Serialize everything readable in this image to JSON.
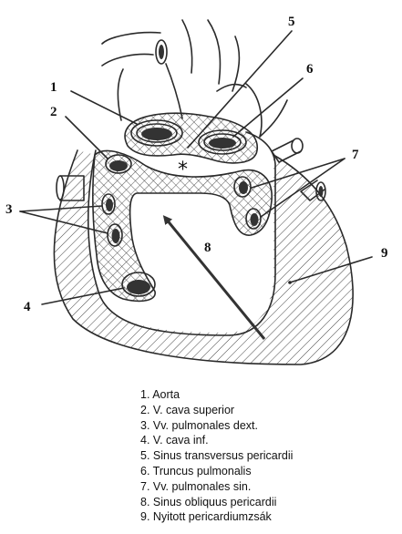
{
  "diagram": {
    "markers": [
      {
        "id": "1",
        "label": "1"
      },
      {
        "id": "2",
        "label": "2"
      },
      {
        "id": "3",
        "label": "3"
      },
      {
        "id": "4",
        "label": "4"
      },
      {
        "id": "5",
        "label": "5"
      },
      {
        "id": "6",
        "label": "6"
      },
      {
        "id": "7",
        "label": "7"
      },
      {
        "id": "8",
        "label": "8"
      },
      {
        "id": "9",
        "label": "9"
      }
    ],
    "symbol": "*"
  },
  "legend": [
    "1. Aorta",
    "2. V. cava superior",
    "3. Vv. pulmonales dext.",
    "4. V. cava inf.",
    "5. Sinus transversus pericardii",
    "6. Truncus pulmonalis",
    "7. Vv. pulmonales sin.",
    "8. Sinus obliquus pericardii",
    "9. Nyitott pericardiumzsák"
  ],
  "colors": {
    "line": "#2a2a2a",
    "text": "#111111",
    "background": "#ffffff"
  }
}
